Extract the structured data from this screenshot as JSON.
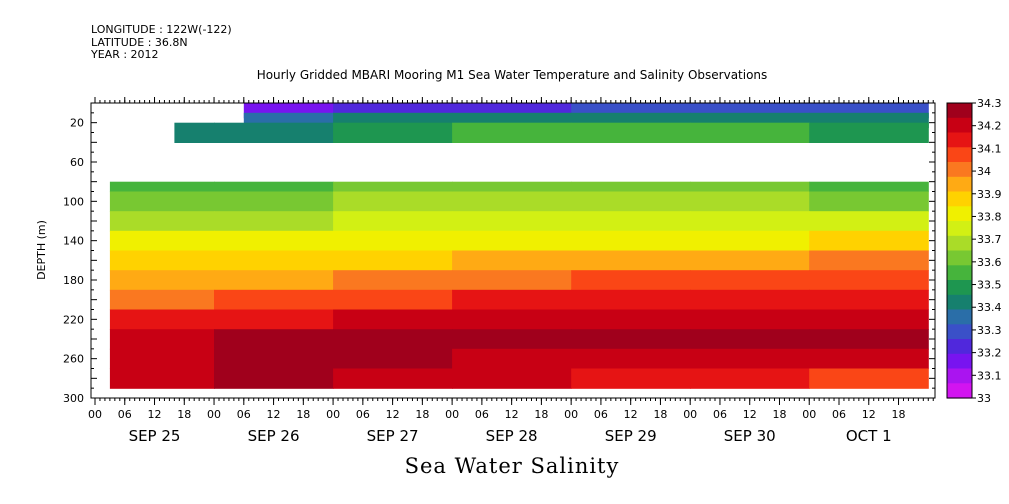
{
  "header": {
    "meta_lines": [
      "LONGITUDE : 122W(-122)",
      "LATITUDE : 36.8N",
      "YEAR : 2012"
    ],
    "title": "Hourly Gridded MBARI Mooring M1 Sea Water Temperature and Salinity Observations"
  },
  "chart_data": {
    "type": "heatmap",
    "title": "Hourly Gridded MBARI Mooring M1 Sea Water Temperature and Salinity Observations",
    "xlabel": "Sea Water Salinity",
    "ylabel": "DEPTH (m)",
    "x_hours_range": [
      0,
      168
    ],
    "x_ticks_hour": [
      "00",
      "06",
      "12",
      "18",
      "00",
      "06",
      "12",
      "18",
      "00",
      "06",
      "12",
      "18",
      "00",
      "06",
      "12",
      "18",
      "00",
      "06",
      "12",
      "18",
      "00",
      "06",
      "12",
      "18",
      "00",
      "06",
      "12",
      "18"
    ],
    "x_day_labels": [
      "SEP 25",
      "SEP 26",
      "SEP 27",
      "SEP 28",
      "SEP 29",
      "SEP 30",
      "OCT  1"
    ],
    "ylim": [
      300,
      0
    ],
    "y_ticks": [
      20,
      60,
      100,
      140,
      180,
      220,
      260,
      300
    ],
    "colorbar": {
      "levels": [
        "34.3",
        "34.2",
        "34.1",
        "34",
        "33.9",
        "33.8",
        "33.7",
        "33.6",
        "33.5",
        "33.4",
        "33.3",
        "33.2",
        "33.1",
        "33"
      ],
      "colors": [
        "#a0001c",
        "#c80014",
        "#e61414",
        "#fa4616",
        "#fa7820",
        "#ffaa14",
        "#ffd200",
        "#f0f000",
        "#d2f014",
        "#aadc28",
        "#78c832",
        "#46b43c",
        "#1e9650",
        "#16806e",
        "#2a6ea8",
        "#3a50c8",
        "#5028dc",
        "#7814f0",
        "#aa14f0",
        "#d214f0"
      ]
    },
    "depth_rows": [
      {
        "depth": 10,
        "start_hour": 30,
        "values": [
          33.22,
          33.18,
          33.2,
          33.25,
          33.28,
          33.3,
          33.3
        ]
      },
      {
        "depth": 20,
        "start_hour": 30,
        "values": [
          33.3,
          33.35,
          33.4,
          33.45,
          33.45,
          33.42,
          33.4
        ]
      },
      {
        "depth": 30,
        "start_hour": 16,
        "values": [
          33.45,
          33.45,
          33.5,
          33.55,
          33.55,
          33.52,
          33.5
        ]
      },
      {
        "depth": 80,
        "start_hour": 3,
        "values": [
          33.55,
          33.58,
          33.6,
          33.62,
          33.6,
          33.6,
          33.58
        ]
      },
      {
        "depth": 100,
        "start_hour": 3,
        "values": [
          33.62,
          33.62,
          33.65,
          33.68,
          33.66,
          33.65,
          33.64
        ]
      },
      {
        "depth": 120,
        "start_hour": 3,
        "values": [
          33.7,
          33.7,
          33.72,
          33.74,
          33.73,
          33.72,
          33.72
        ]
      },
      {
        "depth": 140,
        "start_hour": 3,
        "values": [
          33.78,
          33.78,
          33.8,
          33.82,
          33.82,
          33.82,
          33.85
        ]
      },
      {
        "depth": 160,
        "start_hour": 3,
        "values": [
          33.86,
          33.86,
          33.9,
          33.95,
          33.95,
          33.95,
          33.98
        ]
      },
      {
        "depth": 180,
        "start_hour": 3,
        "values": [
          33.92,
          33.92,
          33.98,
          34.03,
          34.05,
          34.05,
          34.08
        ]
      },
      {
        "depth": 200,
        "start_hour": 3,
        "values": [
          34.02,
          34.05,
          34.08,
          34.12,
          34.12,
          34.12,
          34.15
        ]
      },
      {
        "depth": 220,
        "start_hour": 3,
        "values": [
          34.12,
          34.15,
          34.18,
          34.18,
          34.2,
          34.2,
          34.22
        ]
      },
      {
        "depth": 240,
        "start_hour": 3,
        "values": [
          34.22,
          34.25,
          34.25,
          34.24,
          34.25,
          34.25,
          34.26
        ]
      },
      {
        "depth": 260,
        "start_hour": 3,
        "values": [
          34.22,
          34.3,
          34.25,
          34.22,
          34.22,
          34.22,
          34.2
        ]
      },
      {
        "depth": 280,
        "start_hour": 3,
        "values": [
          34.2,
          34.3,
          34.2,
          34.18,
          34.15,
          34.12,
          34.1
        ]
      }
    ]
  }
}
